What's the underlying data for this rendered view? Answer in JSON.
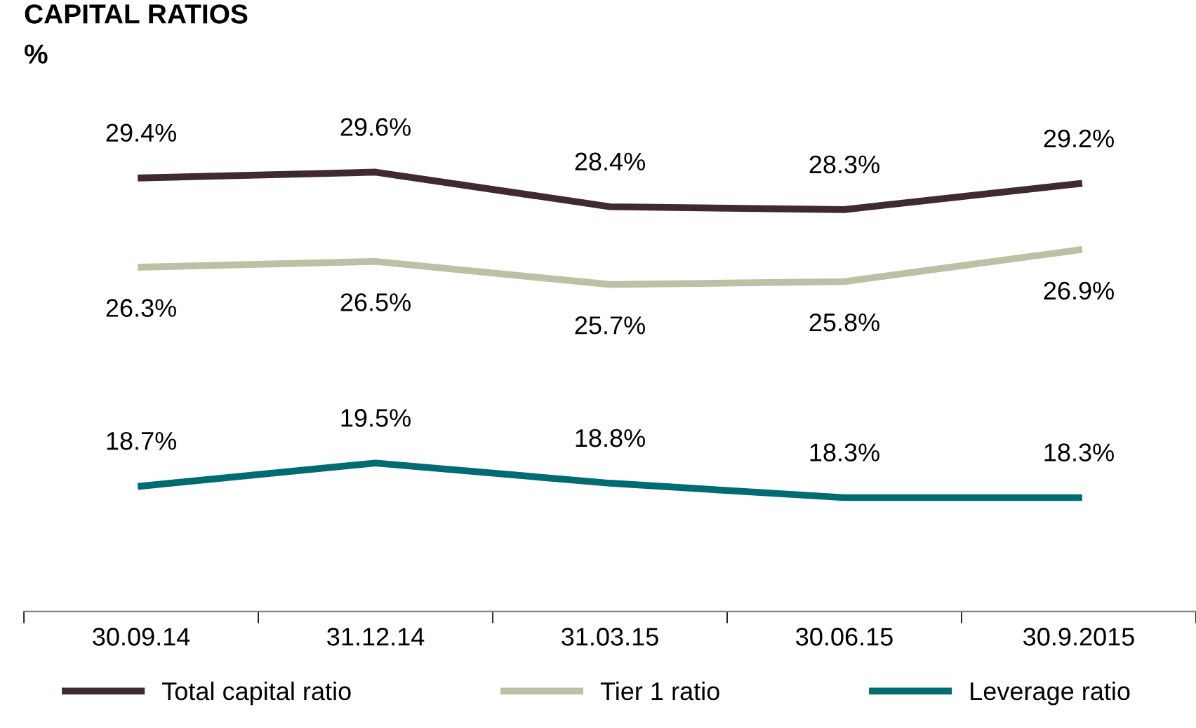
{
  "chart_data": {
    "type": "line",
    "title": "CAPITAL RATIOS",
    "ylabel": "%",
    "categories": [
      "30.09.14",
      "31.12.14",
      "31.03.15",
      "30.06.15",
      "30.9.2015"
    ],
    "tick_labels": "x",
    "grid": false,
    "legend": "bottom",
    "marker": "none",
    "line_style": "solid",
    "series": [
      {
        "name": "Total capital ratio",
        "color": "#3f2a32",
        "values": [
          29.4,
          29.6,
          28.4,
          28.3,
          29.2
        ],
        "value_labels": [
          "29.4%",
          "29.6%",
          "28.4%",
          "28.3%",
          "29.2%"
        ]
      },
      {
        "name": "Tier 1 ratio",
        "color": "#bfbfa5",
        "values": [
          26.3,
          26.5,
          25.7,
          25.8,
          26.9
        ],
        "value_labels": [
          "26.3%",
          "26.5%",
          "25.7%",
          "25.8%",
          "26.9%"
        ]
      },
      {
        "name": "Leverage ratio",
        "color": "#006b73",
        "values": [
          18.7,
          19.5,
          18.8,
          18.3,
          18.3
        ],
        "value_labels": [
          "18.7%",
          "19.5%",
          "18.8%",
          "18.3%",
          "18.3%"
        ]
      }
    ]
  }
}
